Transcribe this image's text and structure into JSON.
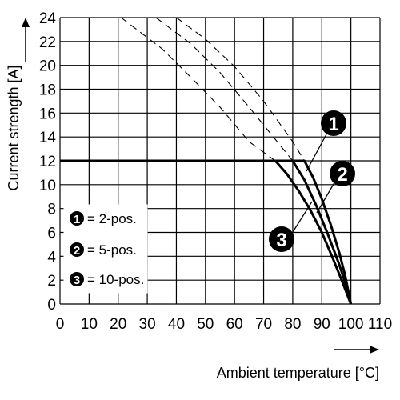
{
  "chart_data": {
    "type": "line",
    "xlabel": "Ambient temperature [°C]",
    "ylabel": "Current strength [A]",
    "xlim": [
      0,
      110
    ],
    "ylim": [
      0,
      24
    ],
    "xticks": [
      0,
      10,
      20,
      30,
      40,
      50,
      60,
      70,
      80,
      90,
      100,
      110
    ],
    "yticks": [
      0,
      2,
      4,
      6,
      8,
      10,
      12,
      14,
      16,
      18,
      20,
      22,
      24
    ],
    "grid": true,
    "legend_position": "lower-left",
    "legend": [
      {
        "marker": "1",
        "label": "= 2-pos."
      },
      {
        "marker": "2",
        "label": "= 5-pos."
      },
      {
        "marker": "3",
        "label": "= 10-pos."
      }
    ],
    "callouts": [
      "1",
      "2",
      "3"
    ],
    "series": [
      {
        "marker": "1",
        "style": "solid",
        "x": [
          0,
          84,
          87,
          90,
          93,
          96,
          98,
          100
        ],
        "y": [
          12,
          12,
          10.6,
          8.8,
          6.7,
          4.3,
          2.4,
          0
        ]
      },
      {
        "marker": "2",
        "style": "solid",
        "x": [
          0,
          80,
          84,
          88,
          92,
          96,
          98,
          100
        ],
        "y": [
          12,
          12,
          10.4,
          8.3,
          5.9,
          3.3,
          1.8,
          0
        ]
      },
      {
        "marker": "3",
        "style": "solid",
        "x": [
          0,
          74,
          78,
          82,
          86,
          90,
          94,
          97,
          100
        ],
        "y": [
          12,
          12,
          10.9,
          9.5,
          7.9,
          6.0,
          3.7,
          1.9,
          0
        ]
      },
      {
        "marker": "1",
        "style": "dashed",
        "x": [
          40,
          50,
          60,
          70,
          80,
          84
        ],
        "y": [
          24,
          22.2,
          19.9,
          17.0,
          13.6,
          12
        ]
      },
      {
        "marker": "2",
        "style": "dashed",
        "x": [
          33,
          45,
          55,
          65,
          75,
          80
        ],
        "y": [
          24,
          21.8,
          19.4,
          16.5,
          13.5,
          12
        ]
      },
      {
        "marker": "3",
        "style": "dashed",
        "x": [
          21,
          35,
          45,
          55,
          65,
          74
        ],
        "y": [
          24,
          21.4,
          19.0,
          16.5,
          13.6,
          12
        ]
      }
    ]
  }
}
